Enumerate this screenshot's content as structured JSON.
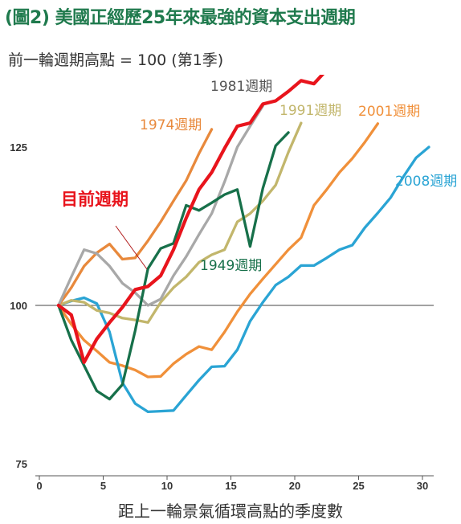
{
  "title": "(圖2) 美國正經歷25年來最強的資本支出週期",
  "subtitle": "前一輪週期高點 = 100 (第1季)",
  "chart_data": {
    "type": "line",
    "title": "(圖2) 美國正經歷25年來最強的資本支出週期",
    "subtitle": "前一輪週期高點 = 100 (第1季)",
    "xlabel": "距上一輪景氣循環高點的季度數",
    "ylabel": "",
    "xlim": [
      0,
      31
    ],
    "ylim": [
      75,
      136
    ],
    "xticks": [
      "0",
      "5",
      "10",
      "15",
      "20",
      "25",
      "30"
    ],
    "yticks": [
      "75",
      "100",
      "125"
    ],
    "reference_line": 100,
    "grid": false,
    "series": [
      {
        "name": "1949週期",
        "color": "#17704a",
        "label": "1949週期",
        "x": [
          1.5,
          2.5,
          3.5,
          4.5,
          5.5,
          6.5,
          7.5,
          8.5,
          9.5,
          10.5,
          11.5,
          12.5,
          13.5,
          14.5,
          15.5,
          16.5,
          17.5,
          18.5,
          19.5
        ],
        "y": [
          100,
          94.5,
          90.5,
          86.5,
          85.2,
          87.5,
          96,
          105.8,
          109,
          109.8,
          115.8,
          115,
          116.2,
          117.5,
          118.3,
          109.3,
          118.5,
          125.2,
          127.3
        ]
      },
      {
        "name": "1974週期",
        "color": "#e8893c",
        "label": "1974週期",
        "x": [
          1.5,
          2.5,
          3.5,
          4.5,
          5.5,
          6.5,
          7.5,
          8.5,
          9.5,
          10.5,
          11.5,
          12.5,
          13.5
        ],
        "y": [
          100,
          102.8,
          106.2,
          108.3,
          109.7,
          107.3,
          107.5,
          110.2,
          113.2,
          116.5,
          119.7,
          124,
          127.8
        ]
      },
      {
        "name": "1981週期",
        "color": "#a8a8a8",
        "label": "1981週期",
        "x": [
          1.5,
          2.5,
          3.5,
          4.5,
          5.5,
          6.5,
          7.5,
          8.5,
          9.5,
          10.5,
          11.5,
          12.5,
          13.5,
          14.5,
          15.5,
          16.5,
          17.5
        ],
        "y": [
          100,
          104.5,
          108.8,
          108.2,
          106.2,
          103.5,
          102,
          100,
          101,
          104.7,
          107.7,
          111.2,
          114.5,
          119.5,
          125,
          128.3,
          131.5
        ]
      },
      {
        "name": "1991週期",
        "color": "#c2b66c",
        "label": "1991週期",
        "x": [
          1.5,
          2.5,
          3.5,
          4.5,
          5.5,
          6.5,
          7.5,
          8.5,
          9.5,
          10.5,
          11.5,
          12.5,
          13.5,
          14.5,
          15.5,
          16.5,
          17.5,
          18.5,
          19.5,
          20.5
        ],
        "y": [
          100,
          100.8,
          100.5,
          99.2,
          98.8,
          98,
          97.7,
          97.3,
          100.5,
          102.8,
          104.5,
          106.8,
          108,
          108.8,
          113.2,
          114.5,
          116.5,
          119,
          124.2,
          128.8
        ]
      },
      {
        "name": "2001週期",
        "color": "#f0903a",
        "label": "2001週期",
        "x": [
          1.5,
          2.5,
          3.5,
          4.5,
          5.5,
          6.5,
          7.5,
          8.5,
          9.5,
          10.5,
          11.5,
          12.5,
          13.5,
          14.5,
          15.5,
          16.5,
          17.5,
          18.5,
          19.5,
          20.5,
          21.5,
          22.5,
          23.5,
          24.5,
          25.5,
          26.5
        ],
        "y": [
          100,
          97,
          94.5,
          92.8,
          91,
          90.5,
          89.8,
          88.7,
          88.8,
          90.8,
          92.3,
          93.5,
          93,
          95.8,
          99,
          101.8,
          104.2,
          106.5,
          108.8,
          110.7,
          115.8,
          118.3,
          121,
          123.2,
          125.8,
          128.7
        ]
      },
      {
        "name": "2008週期",
        "color": "#2aa4d4",
        "label": "2008週期",
        "x": [
          1.5,
          2.5,
          3.5,
          4.5,
          5.5,
          6.5,
          7.5,
          8.5,
          9.5,
          10.5,
          11.5,
          12.5,
          13.5,
          14.5,
          15.5,
          16.5,
          17.5,
          18.5,
          19.5,
          20.5,
          21.5,
          22.5,
          23.5,
          24.5,
          25.5,
          26.5,
          27.5,
          28.5,
          29.5,
          30.5
        ],
        "y": [
          100,
          100.7,
          101.2,
          100.3,
          95.8,
          87.8,
          84.5,
          83.2,
          83.3,
          83.4,
          85.8,
          88.2,
          90.3,
          90.4,
          93,
          97.5,
          100.5,
          103.2,
          104.5,
          106.3,
          106.3,
          107.5,
          108.8,
          109.5,
          112.3,
          114.6,
          117,
          120.3,
          123.3,
          125
        ]
      },
      {
        "name": "目前週期",
        "color": "#e8141c",
        "label": "目前週期",
        "x": [
          1.5,
          2.5,
          3.5,
          4.5,
          5.5,
          6.5,
          7.5,
          8.5,
          9.5,
          10.5,
          11.5,
          12.5,
          13.5,
          14.5,
          15.5,
          16.5,
          17.5,
          18.5,
          19.5,
          20.5,
          21.5,
          22.5
        ],
        "y": [
          100,
          98.5,
          91,
          94.7,
          97.3,
          99.7,
          102.5,
          103,
          104.7,
          108.8,
          113.8,
          118.3,
          121,
          124.8,
          128.3,
          128.8,
          131.8,
          132.3,
          133.8,
          135.5,
          135,
          137.2
        ]
      }
    ]
  }
}
